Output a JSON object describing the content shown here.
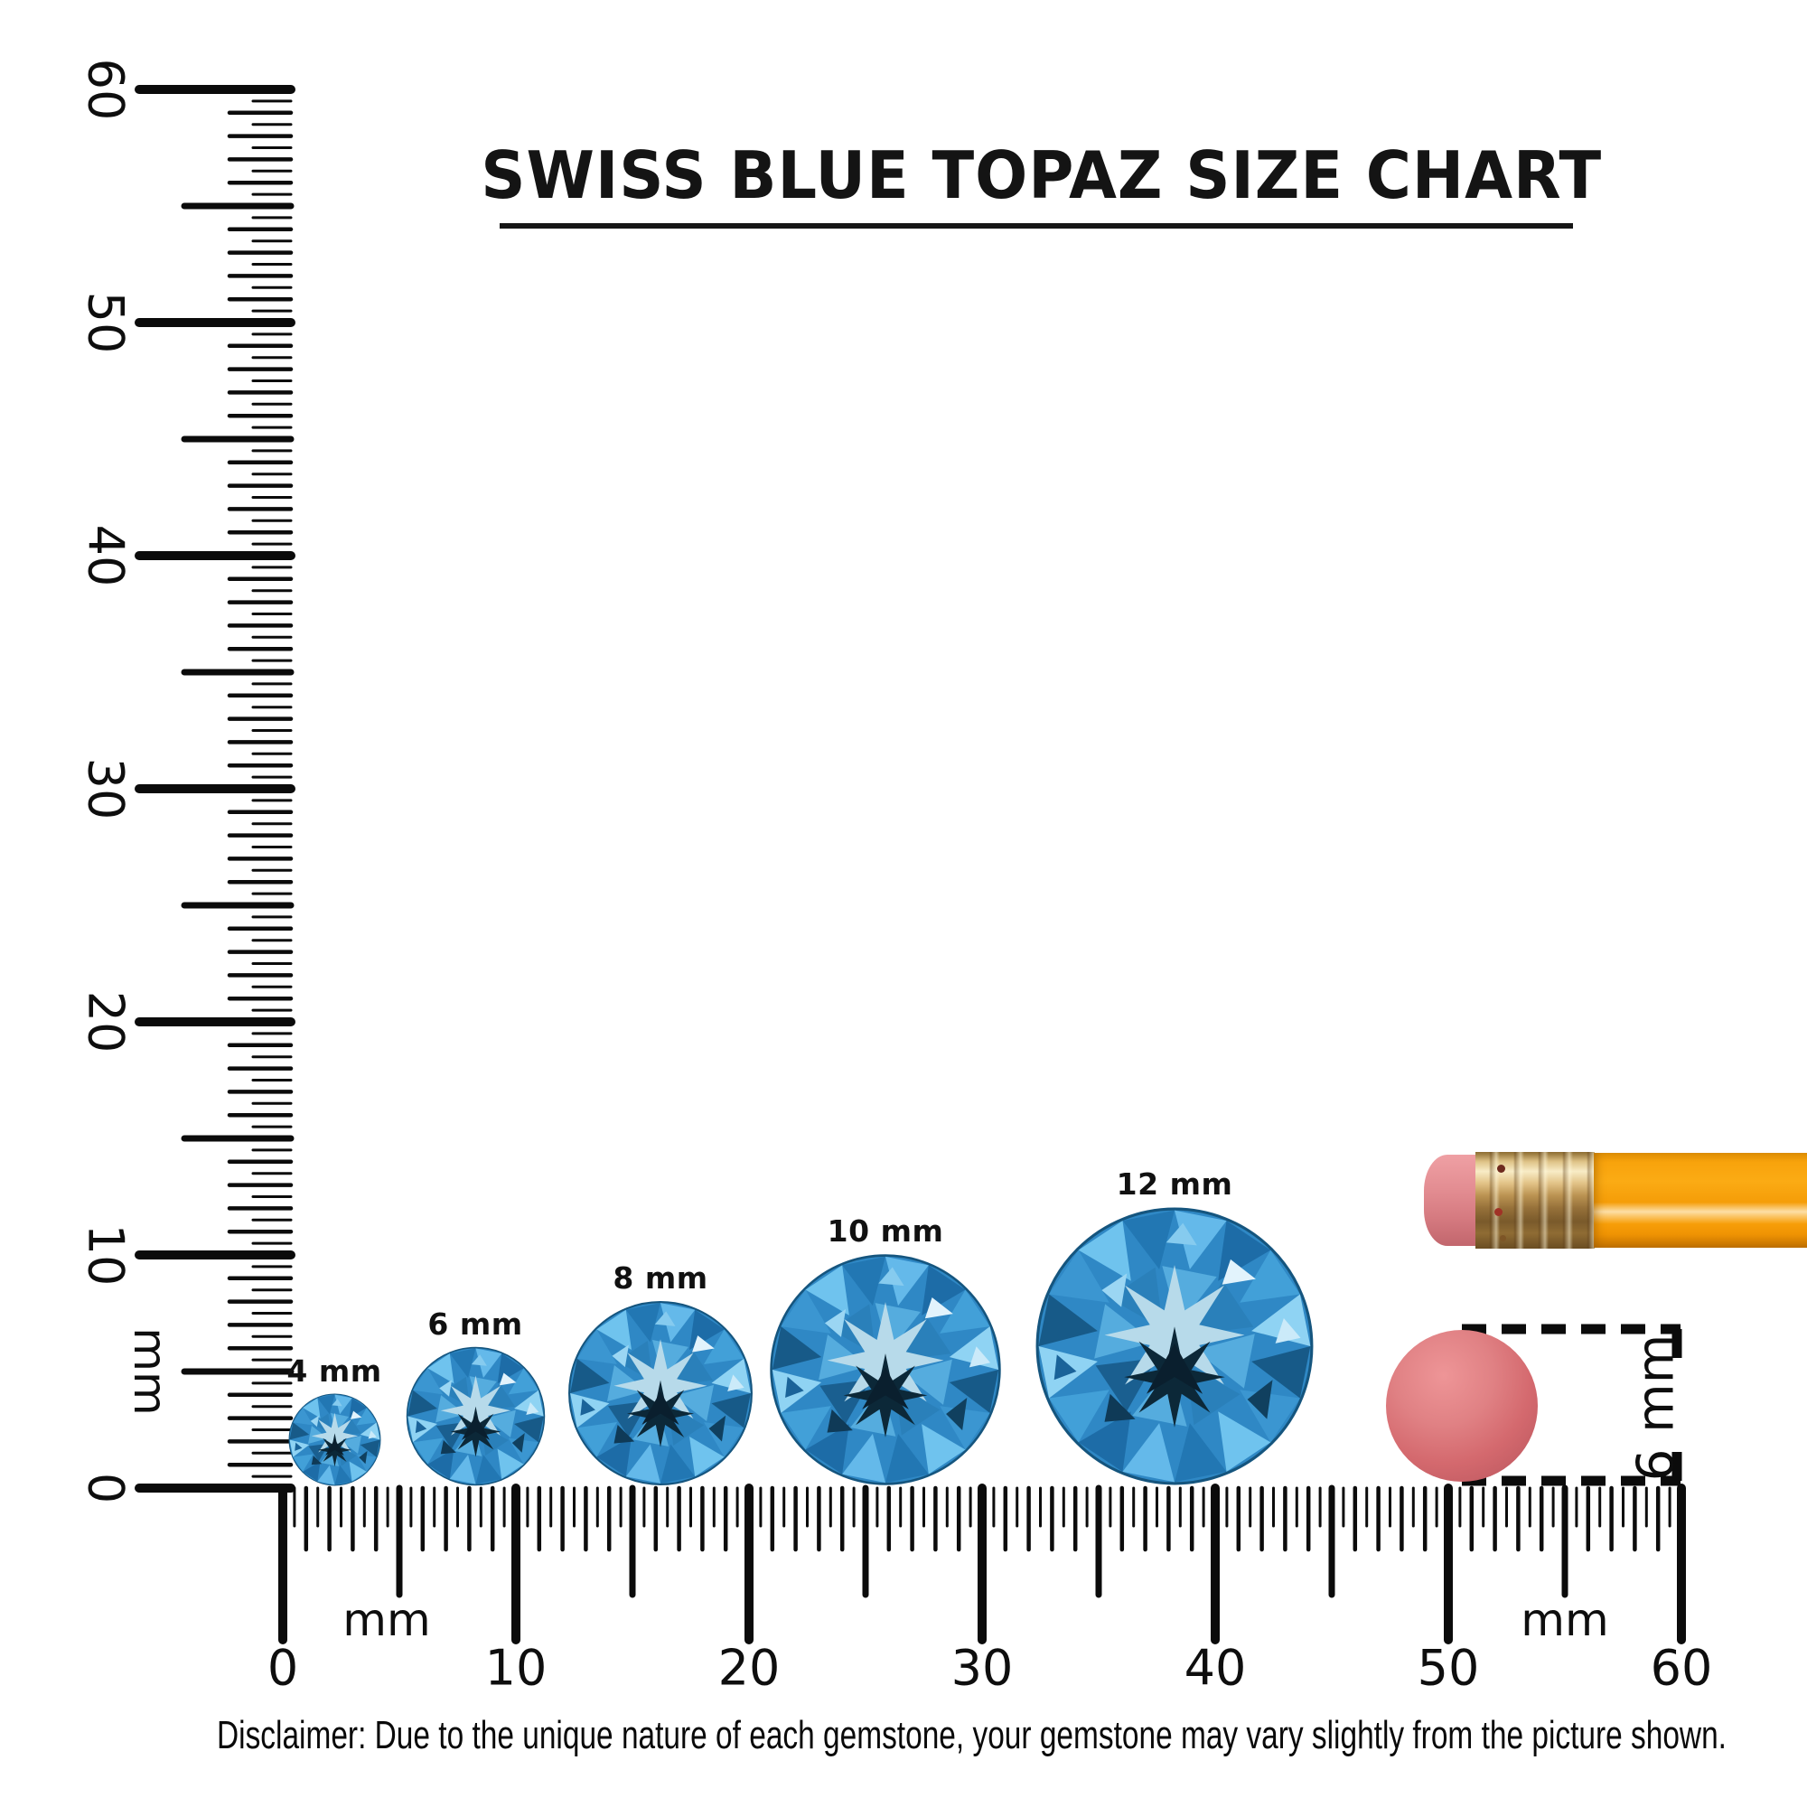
{
  "title": "SWISS BLUE TOPAZ SIZE CHART",
  "rulers": {
    "vertical": {
      "unit_label": "mm",
      "tick_labels": [
        "0",
        "10",
        "20",
        "30",
        "40",
        "50",
        "60"
      ]
    },
    "horizontal": {
      "unit_label": "mm",
      "tick_labels": [
        "0",
        "10",
        "20",
        "30",
        "40",
        "50",
        "60"
      ]
    }
  },
  "gems": [
    {
      "label": "4 mm",
      "size_mm": 4
    },
    {
      "label": "6 mm",
      "size_mm": 6
    },
    {
      "label": "8 mm",
      "size_mm": 8
    },
    {
      "label": "10 mm",
      "size_mm": 10
    },
    {
      "label": "12 mm",
      "size_mm": 12
    }
  ],
  "reference_objects": {
    "pencil": {
      "name": "pencil-with-eraser"
    },
    "eraser_dot": {
      "label": "6 mm",
      "diameter_mm": 6
    }
  },
  "disclaimer": "Disclaimer: Due to the unique nature of each gemstone, your gemstone may vary slightly from the picture shown.",
  "colors": {
    "gem_blue": "#2F88C5",
    "gem_dark_facet": "#0C2838",
    "gem_light_star": "#B7DAEA",
    "pencil_orange": "#F9A20B",
    "ferrule_gold": "#C89A52",
    "eraser_pink": "#D96B6E",
    "ink": "#0B0B0B"
  }
}
